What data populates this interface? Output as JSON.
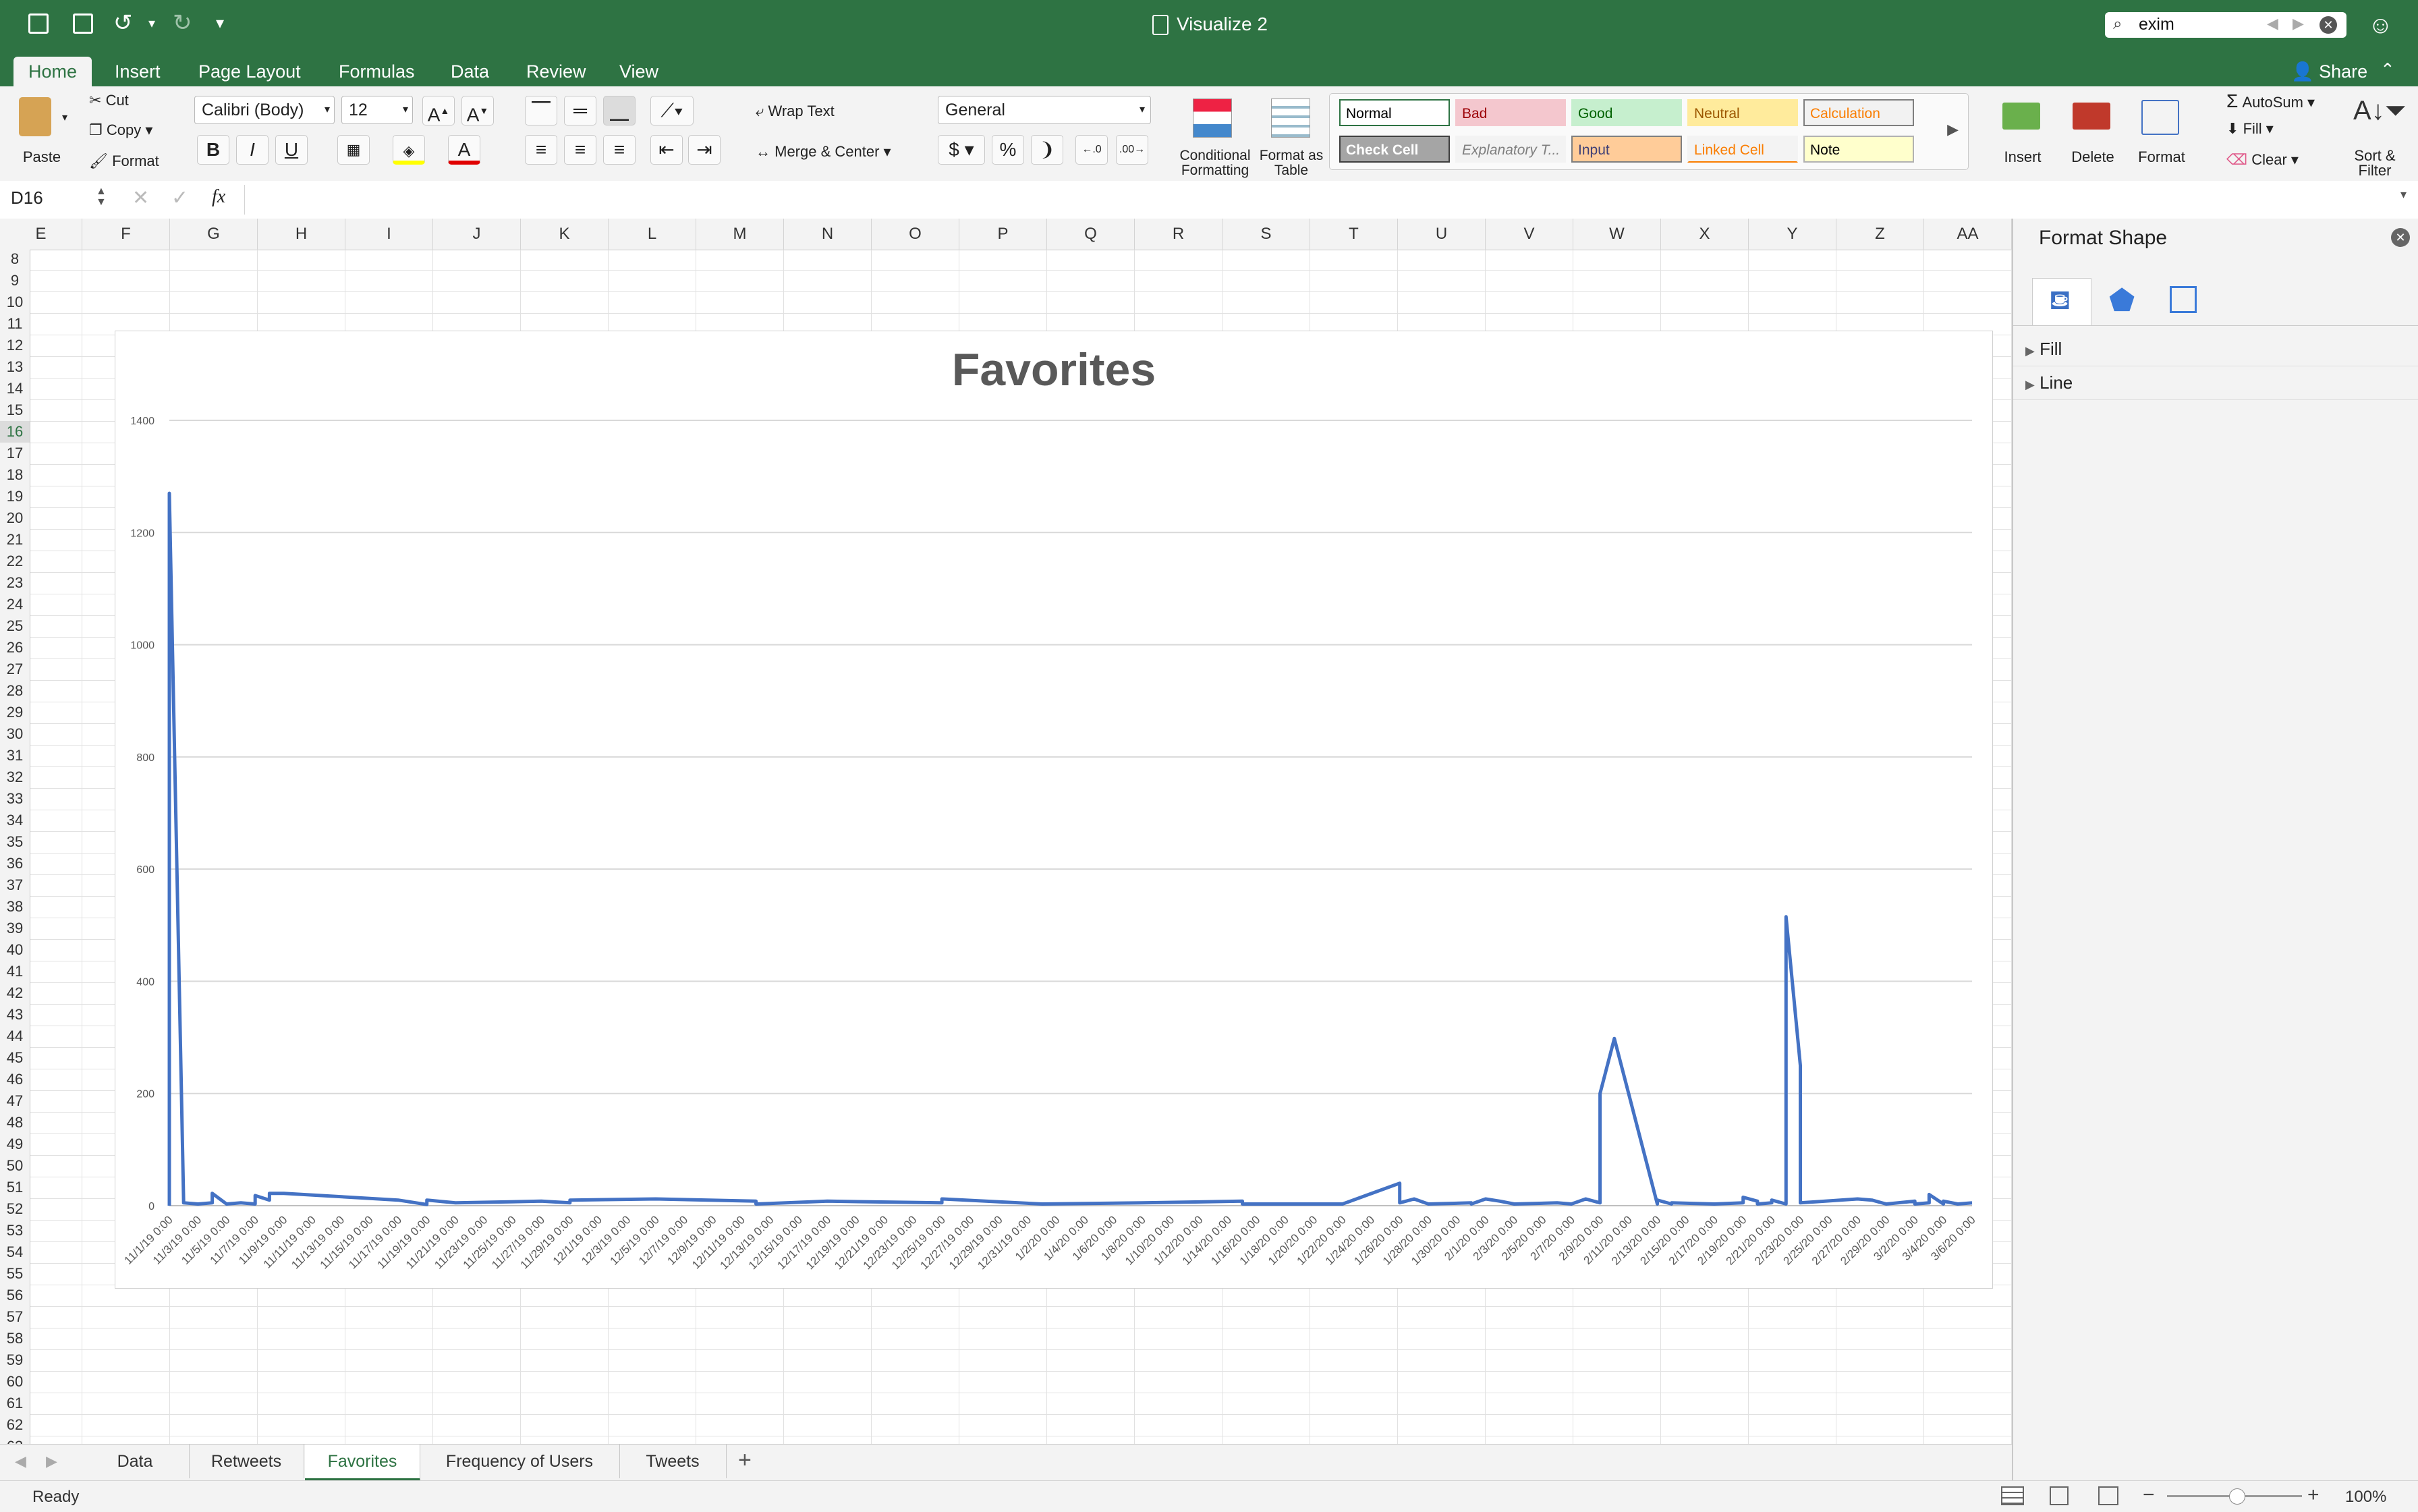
{
  "app": {
    "title": "Visualize 2",
    "search_value": "exim"
  },
  "ribbon_tabs": [
    "Home",
    "Insert",
    "Page Layout",
    "Formulas",
    "Data",
    "Review",
    "View"
  ],
  "share_label": "Share",
  "clipboard": {
    "paste": "Paste",
    "cut": "Cut",
    "copy": "Copy",
    "format": "Format"
  },
  "font": {
    "name": "Calibri (Body)",
    "size": "12"
  },
  "alignment": {
    "wrap": "Wrap Text",
    "merge": "Merge & Center"
  },
  "number": {
    "format": "General",
    "dollar": "$",
    "percent": "%",
    "comma": "❩"
  },
  "styles_group": {
    "cond": "Conditional Formatting",
    "table": "Format as Table"
  },
  "styles": [
    {
      "label": "Normal",
      "bg": "#ffffff",
      "fg": "#000000",
      "border": "#2e7343"
    },
    {
      "label": "Bad",
      "bg": "#f4c7ce",
      "fg": "#9c0006",
      "border": "#f4c7ce"
    },
    {
      "label": "Good",
      "bg": "#c6efce",
      "fg": "#006100",
      "border": "#c6efce"
    },
    {
      "label": "Neutral",
      "bg": "#ffeb9c",
      "fg": "#9c5700",
      "border": "#ffeb9c"
    },
    {
      "label": "Calculation",
      "bg": "#f2f2f2",
      "fg": "#fa7d00",
      "border": "#7f7f7f"
    },
    {
      "label": "Check Cell",
      "bg": "#a5a5a5",
      "fg": "#ffffff",
      "border": "#3f3f3f"
    },
    {
      "label": "Explanatory T...",
      "bg": "#f3f3f3",
      "fg": "#7f7f7f",
      "border": "#f3f3f3"
    },
    {
      "label": "Input",
      "bg": "#ffcc99",
      "fg": "#3f3f76",
      "border": "#7f7f7f"
    },
    {
      "label": "Linked Cell",
      "bg": "#f3f3f3",
      "fg": "#fa7d00",
      "border": "#f3f3f3"
    },
    {
      "label": "Note",
      "bg": "#ffffcc",
      "fg": "#000000",
      "border": "#b2b2b2"
    }
  ],
  "cells_group": {
    "insert": "Insert",
    "delete": "Delete",
    "format": "Format"
  },
  "editing": {
    "autosum": "AutoSum",
    "fill": "Fill",
    "clear": "Clear",
    "sort": "Sort & Filter"
  },
  "formula_bar": {
    "cell_ref": "D16",
    "fx": "fx",
    "value": ""
  },
  "columns": [
    "E",
    "F",
    "G",
    "H",
    "I",
    "J",
    "K",
    "L",
    "M",
    "N",
    "O",
    "P",
    "Q",
    "R",
    "S",
    "T",
    "U",
    "V",
    "W",
    "X",
    "Y",
    "Z",
    "AA"
  ],
  "rows": [
    "8",
    "9",
    "10",
    "11",
    "12",
    "13",
    "14",
    "15",
    "16",
    "17",
    "18",
    "19",
    "20",
    "21",
    "22",
    "23",
    "24",
    "25",
    "26",
    "27",
    "28",
    "29",
    "30",
    "31",
    "32",
    "33",
    "34",
    "35",
    "36",
    "37",
    "38",
    "39",
    "40",
    "41",
    "42",
    "43",
    "44",
    "45",
    "46",
    "47",
    "48",
    "49",
    "50",
    "51",
    "52",
    "53",
    "54",
    "55",
    "56",
    "57",
    "58",
    "59",
    "60",
    "61",
    "62",
    "63"
  ],
  "format_pane": {
    "title": "Format Shape",
    "sections": [
      "Fill",
      "Line"
    ]
  },
  "sheet_tabs": [
    "Data",
    "Retweets",
    "Favorites",
    "Frequency of Users",
    "Tweets"
  ],
  "active_sheet": "Favorites",
  "status": {
    "text": "Ready",
    "zoom": "100%"
  },
  "chart_data": {
    "type": "line",
    "title": "Favorites",
    "xlabel": "",
    "ylabel": "",
    "ylim": [
      0,
      1400
    ],
    "yticks": [
      0,
      200,
      400,
      600,
      800,
      1000,
      1200,
      1400
    ],
    "grid": true,
    "color": "#4472c4",
    "x_tick_labels": [
      "11/1/19 0:00",
      "11/3/19 0:00",
      "11/5/19 0:00",
      "11/7/19 0:00",
      "11/9/19 0:00",
      "11/11/19 0:00",
      "11/13/19 0:00",
      "11/15/19 0:00",
      "11/17/19 0:00",
      "11/19/19 0:00",
      "11/21/19 0:00",
      "11/23/19 0:00",
      "11/25/19 0:00",
      "11/27/19 0:00",
      "11/29/19 0:00",
      "12/1/19 0:00",
      "12/3/19 0:00",
      "12/5/19 0:00",
      "12/7/19 0:00",
      "12/9/19 0:00",
      "12/11/19 0:00",
      "12/13/19 0:00",
      "12/15/19 0:00",
      "12/17/19 0:00",
      "12/19/19 0:00",
      "12/21/19 0:00",
      "12/23/19 0:00",
      "12/25/19 0:00",
      "12/27/19 0:00",
      "12/29/19 0:00",
      "12/31/19 0:00",
      "1/2/20 0:00",
      "1/4/20 0:00",
      "1/6/20 0:00",
      "1/8/20 0:00",
      "1/10/20 0:00",
      "1/12/20 0:00",
      "1/14/20 0:00",
      "1/16/20 0:00",
      "1/18/20 0:00",
      "1/20/20 0:00",
      "1/22/20 0:00",
      "1/24/20 0:00",
      "1/26/20 0:00",
      "1/28/20 0:00",
      "1/30/20 0:00",
      "2/1/20 0:00",
      "2/3/20 0:00",
      "2/5/20 0:00",
      "2/7/20 0:00",
      "2/9/20 0:00",
      "2/11/20 0:00",
      "2/13/20 0:00",
      "2/15/20 0:00",
      "2/17/20 0:00",
      "2/19/20 0:00",
      "2/21/20 0:00",
      "2/23/20 0:00",
      "2/25/20 0:00",
      "2/27/20 0:00",
      "2/29/20 0:00",
      "3/2/20 0:00",
      "3/4/20 0:00",
      "3/6/20 0:00"
    ],
    "x": [
      "11/1/19",
      "11/1/19",
      "11/2/19",
      "11/3/19",
      "11/4/19",
      "11/4/19",
      "11/5/19",
      "11/6/19",
      "11/7/19",
      "11/7/19",
      "11/8/19",
      "11/8/19",
      "11/9/19",
      "11/17/19",
      "11/19/19",
      "11/19/19",
      "11/21/19",
      "11/27/19",
      "11/29/19",
      "11/29/19",
      "12/5/19",
      "12/12/19",
      "12/12/19",
      "12/17/19",
      "12/25/19",
      "12/25/19",
      "1/1/20",
      "1/8/20",
      "1/15/20",
      "1/15/20",
      "1/22/20",
      "1/26/20",
      "1/26/20",
      "1/27/20",
      "1/28/20",
      "1/28/20",
      "1/31/20",
      "1/31/20",
      "2/1/20",
      "2/2/20",
      "2/3/20",
      "2/6/20",
      "2/7/20",
      "2/8/20",
      "2/9/20",
      "2/9/20",
      "2/10/20",
      "2/13/20",
      "2/13/20",
      "2/14/20",
      "2/14/20",
      "2/17/20",
      "2/19/20",
      "2/19/20",
      "2/20/20",
      "2/20/20",
      "2/21/20",
      "2/21/20",
      "2/22/20",
      "2/22/20",
      "2/23/20",
      "2/23/20",
      "2/27/20",
      "2/28/20",
      "2/29/20",
      "3/2/20",
      "3/2/20",
      "3/3/20",
      "3/3/20",
      "3/4/20",
      "3/4/20",
      "3/5/20",
      "3/5/20",
      "3/6/20"
    ],
    "y": [
      0,
      1270,
      5,
      3,
      5,
      22,
      3,
      5,
      3,
      18,
      10,
      22,
      22,
      10,
      2,
      10,
      5,
      8,
      5,
      10,
      12,
      8,
      3,
      8,
      5,
      12,
      3,
      5,
      8,
      3,
      3,
      40,
      5,
      12,
      3,
      3,
      5,
      3,
      12,
      8,
      3,
      5,
      3,
      12,
      5,
      200,
      298,
      3,
      10,
      3,
      5,
      3,
      5,
      15,
      8,
      3,
      5,
      10,
      3,
      515,
      250,
      5,
      12,
      10,
      3,
      8,
      3,
      5,
      20,
      3,
      8,
      3,
      3,
      5
    ]
  }
}
